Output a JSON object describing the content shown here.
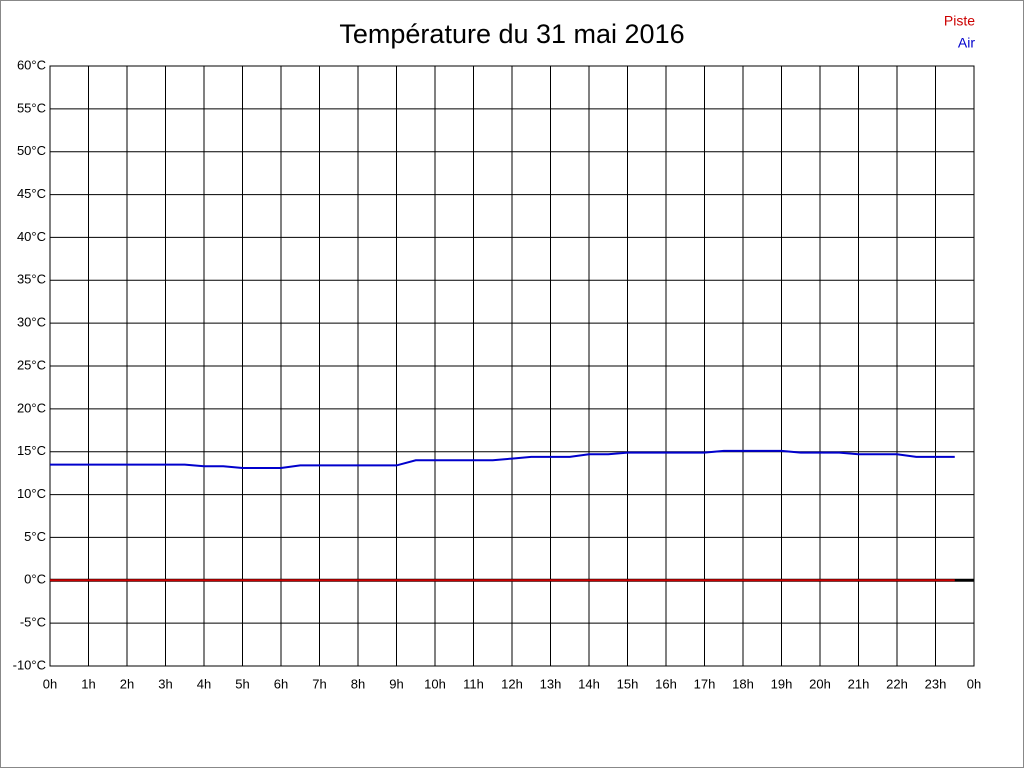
{
  "chart_data": {
    "type": "line",
    "title": "Température du 31 mai 2016",
    "x": [
      0,
      0.5,
      1,
      1.5,
      2,
      2.5,
      3,
      3.5,
      4,
      4.5,
      5,
      5.5,
      6,
      6.5,
      7,
      7.5,
      8,
      8.5,
      9,
      9.5,
      10,
      10.5,
      11,
      11.5,
      12,
      12.5,
      13,
      13.5,
      14,
      14.5,
      15,
      15.5,
      16,
      16.5,
      17,
      17.5,
      18,
      18.5,
      19,
      19.5,
      20,
      20.5,
      21,
      21.5,
      22,
      22.5,
      23,
      23.5
    ],
    "series": [
      {
        "name": "Piste",
        "color": "#cc0000",
        "values": [
          0,
          0,
          0,
          0,
          0,
          0,
          0,
          0,
          0,
          0,
          0,
          0,
          0,
          0,
          0,
          0,
          0,
          0,
          0,
          0,
          0,
          0,
          0,
          0,
          0,
          0,
          0,
          0,
          0,
          0,
          0,
          0,
          0,
          0,
          0,
          0,
          0,
          0,
          0,
          0,
          0,
          0,
          0,
          0,
          0,
          0,
          0,
          0
        ]
      },
      {
        "name": "Air",
        "color": "#0000cc",
        "values": [
          13.5,
          13.5,
          13.5,
          13.5,
          13.5,
          13.5,
          13.5,
          13.5,
          13.3,
          13.3,
          13.1,
          13.1,
          13.1,
          13.4,
          13.4,
          13.4,
          13.4,
          13.4,
          13.4,
          14.0,
          14.0,
          14.0,
          14.0,
          14.0,
          14.2,
          14.4,
          14.4,
          14.4,
          14.7,
          14.7,
          14.9,
          14.9,
          14.9,
          14.9,
          14.9,
          15.1,
          15.1,
          15.1,
          15.1,
          14.9,
          14.9,
          14.9,
          14.7,
          14.7,
          14.7,
          14.4,
          14.4,
          14.4
        ]
      }
    ],
    "xlim": [
      0,
      24
    ],
    "xticks": [
      {
        "value": 0,
        "label": "0h"
      },
      {
        "value": 1,
        "label": "1h"
      },
      {
        "value": 2,
        "label": "2h"
      },
      {
        "value": 3,
        "label": "3h"
      },
      {
        "value": 4,
        "label": "4h"
      },
      {
        "value": 5,
        "label": "5h"
      },
      {
        "value": 6,
        "label": "6h"
      },
      {
        "value": 7,
        "label": "7h"
      },
      {
        "value": 8,
        "label": "8h"
      },
      {
        "value": 9,
        "label": "9h"
      },
      {
        "value": 10,
        "label": "10h"
      },
      {
        "value": 11,
        "label": "11h"
      },
      {
        "value": 12,
        "label": "12h"
      },
      {
        "value": 13,
        "label": "13h"
      },
      {
        "value": 14,
        "label": "14h"
      },
      {
        "value": 15,
        "label": "15h"
      },
      {
        "value": 16,
        "label": "16h"
      },
      {
        "value": 17,
        "label": "17h"
      },
      {
        "value": 18,
        "label": "18h"
      },
      {
        "value": 19,
        "label": "19h"
      },
      {
        "value": 20,
        "label": "20h"
      },
      {
        "value": 21,
        "label": "21h"
      },
      {
        "value": 22,
        "label": "22h"
      },
      {
        "value": 23,
        "label": "23h"
      },
      {
        "value": 24,
        "label": "0h"
      }
    ],
    "ylim": [
      -10,
      60
    ],
    "yticks": [
      {
        "value": -10,
        "label": "-10°C"
      },
      {
        "value": -5,
        "label": "-5°C"
      },
      {
        "value": 0,
        "label": "0°C"
      },
      {
        "value": 5,
        "label": "5°C"
      },
      {
        "value": 10,
        "label": "10°C"
      },
      {
        "value": 15,
        "label": "15°C"
      },
      {
        "value": 20,
        "label": "20°C"
      },
      {
        "value": 25,
        "label": "25°C"
      },
      {
        "value": 30,
        "label": "30°C"
      },
      {
        "value": 35,
        "label": "35°C"
      },
      {
        "value": 40,
        "label": "40°C"
      },
      {
        "value": 45,
        "label": "45°C"
      },
      {
        "value": 50,
        "label": "50°C"
      },
      {
        "value": 55,
        "label": "55°C"
      },
      {
        "value": 60,
        "label": "60°C"
      }
    ],
    "grid": true,
    "legend": "top-right"
  }
}
